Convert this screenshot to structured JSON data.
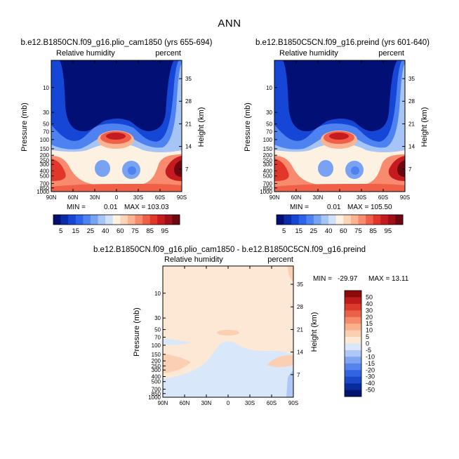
{
  "page": {
    "title": "ANN"
  },
  "colors": {
    "bg": "#ffffff",
    "abs_palette": [
      "#020F75",
      "#0A2CA8",
      "#1546D6",
      "#2D63EA",
      "#4E82F0",
      "#78A3F3",
      "#A6C4F5",
      "#CFE0F8",
      "#FDF1E2",
      "#FCD5B8",
      "#FBB393",
      "#F88A6E",
      "#F06048",
      "#E2362B",
      "#C51A1E",
      "#9E0F18",
      "#6E0710"
    ],
    "diff_palette": [
      "#00136F",
      "#0A2B9E",
      "#1D48C8",
      "#3264E0",
      "#5484EC",
      "#7FA4F2",
      "#AEC7F6",
      "#D9E7FA",
      "#FDE8D5",
      "#FBCFB1",
      "#F9B08E",
      "#F48C6C",
      "#EA6149",
      "#DA3A2C",
      "#BE1B1C",
      "#8C0A0A"
    ]
  },
  "chart_data": [
    {
      "id": "left-panel",
      "type": "heatmap",
      "title": "b.e12.B1850CN.f09_g16.plio_cam1850 (yrs 655-694)",
      "left_string": "Relative humidity",
      "right_string": "percent",
      "xlabels": [
        "90N",
        "60N",
        "30N",
        "0",
        "30S",
        "60S",
        "90S"
      ],
      "x_range": [
        90,
        -90
      ],
      "ylabel": "Pressure (mb)",
      "ytick_labels": [
        "10",
        "30",
        "50",
        "70",
        "100",
        "150",
        "200",
        "250",
        "300",
        "400",
        "500",
        "700",
        "850",
        "1000"
      ],
      "y_range_mb": [
        1000,
        3
      ],
      "ylabel_right": "Height (km)",
      "right_tick_labels": [
        "7",
        "14",
        "21",
        "28",
        "35"
      ],
      "stats": {
        "min_label": "MIN =",
        "min": "0.01",
        "max_label": "MAX =",
        "max": "103.03"
      },
      "colorbar_labels": [
        "5",
        "15",
        "25",
        "40",
        "60",
        "75",
        "85",
        "95"
      ]
    },
    {
      "id": "right-panel",
      "type": "heatmap",
      "title": "b.e12.B1850C5CN.f09_g16.preind (yrs 601-640)",
      "left_string": "Relative humidity",
      "right_string": "percent",
      "xlabels": [
        "90N",
        "60N",
        "30N",
        "0",
        "30S",
        "60S",
        "90S"
      ],
      "x_range": [
        90,
        -90
      ],
      "ylabel": "Pressure (mb)",
      "ytick_labels": [
        "10",
        "30",
        "50",
        "70",
        "100",
        "150",
        "200",
        "250",
        "300",
        "400",
        "500",
        "700",
        "850",
        "1000"
      ],
      "y_range_mb": [
        1000,
        3
      ],
      "ylabel_right": "Height (km)",
      "right_tick_labels": [
        "7",
        "14",
        "21",
        "28",
        "35"
      ],
      "stats": {
        "min_label": "MIN =",
        "min": "0.01",
        "max_label": "MAX =",
        "max": "105.50"
      },
      "colorbar_labels": [
        "5",
        "15",
        "25",
        "40",
        "60",
        "75",
        "85",
        "95"
      ]
    },
    {
      "id": "diff-panel",
      "type": "heatmap",
      "title": "b.e12.B1850CN.f09_g16.plio_cam1850 - b.e12.B1850C5CN.f09_g16.preind",
      "left_string": "Relative humidity",
      "right_string": "percent",
      "xlabels": [
        "90N",
        "60N",
        "30N",
        "0",
        "30S",
        "60S",
        "90S"
      ],
      "x_range": [
        90,
        -90
      ],
      "ylabel": "Pressure (mb)",
      "ytick_labels": [
        "10",
        "30",
        "50",
        "70",
        "100",
        "150",
        "200",
        "250",
        "300",
        "400",
        "500",
        "700",
        "850",
        "1000"
      ],
      "y_range_mb": [
        1000,
        3
      ],
      "ylabel_right": "Height (km)",
      "right_tick_labels": [
        "7",
        "14",
        "21",
        "28",
        "35"
      ],
      "stats": {
        "min_label": "MIN =",
        "min": "-29.97",
        "max_label": "MAX =",
        "max": "13.11"
      },
      "colorbar_labels": [
        "50",
        "40",
        "30",
        "20",
        "15",
        "10",
        "5",
        "0",
        "-5",
        "-10",
        "-15",
        "-20",
        "-30",
        "-40",
        "-50"
      ]
    }
  ]
}
